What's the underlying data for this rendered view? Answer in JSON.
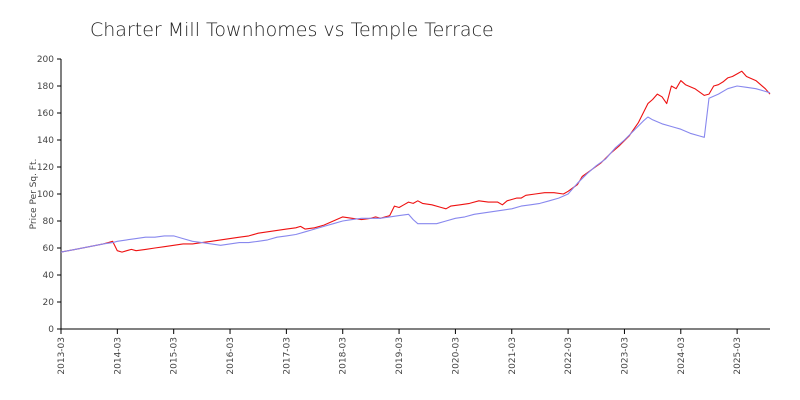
{
  "chart_data": {
    "type": "line",
    "title": "Charter Mill Townhomes vs Temple Terrace",
    "xlabel": "",
    "ylabel": "Price Per Sq. Ft.",
    "ylim": [
      0,
      200
    ],
    "yticks": [
      0,
      20,
      40,
      60,
      80,
      100,
      120,
      140,
      160,
      180,
      200
    ],
    "xticks": [
      "2013-03",
      "2014-03",
      "2015-03",
      "2016-03",
      "2017-03",
      "2018-03",
      "2019-03",
      "2020-03",
      "2021-03",
      "2022-03",
      "2023-03",
      "2024-03",
      "2025-03"
    ],
    "xrange": [
      "2013-03",
      "2025-10"
    ],
    "grid": false,
    "legend": "none",
    "series": [
      {
        "color": "#ee1111",
        "points": [
          [
            "2013-03",
            57
          ],
          [
            "2013-06",
            59
          ],
          [
            "2013-09",
            61
          ],
          [
            "2013-12",
            63
          ],
          [
            "2014-01",
            64
          ],
          [
            "2014-02",
            65
          ],
          [
            "2014-03",
            58
          ],
          [
            "2014-04",
            57
          ],
          [
            "2014-05",
            58
          ],
          [
            "2014-06",
            59
          ],
          [
            "2014-07",
            58
          ],
          [
            "2014-09",
            59
          ],
          [
            "2014-11",
            60
          ],
          [
            "2015-01",
            61
          ],
          [
            "2015-03",
            62
          ],
          [
            "2015-05",
            63
          ],
          [
            "2015-07",
            63
          ],
          [
            "2015-09",
            64
          ],
          [
            "2015-11",
            65
          ],
          [
            "2016-01",
            66
          ],
          [
            "2016-03",
            67
          ],
          [
            "2016-05",
            68
          ],
          [
            "2016-07",
            69
          ],
          [
            "2016-09",
            71
          ],
          [
            "2016-11",
            72
          ],
          [
            "2017-01",
            73
          ],
          [
            "2017-03",
            74
          ],
          [
            "2017-05",
            75
          ],
          [
            "2017-06",
            76
          ],
          [
            "2017-07",
            74
          ],
          [
            "2017-09",
            75
          ],
          [
            "2017-11",
            77
          ],
          [
            "2018-01",
            80
          ],
          [
            "2018-03",
            83
          ],
          [
            "2018-05",
            82
          ],
          [
            "2018-07",
            81
          ],
          [
            "2018-09",
            82
          ],
          [
            "2018-10",
            83
          ],
          [
            "2018-11",
            82
          ],
          [
            "2019-01",
            84
          ],
          [
            "2019-02",
            91
          ],
          [
            "2019-03",
            90
          ],
          [
            "2019-04",
            92
          ],
          [
            "2019-05",
            94
          ],
          [
            "2019-06",
            93
          ],
          [
            "2019-07",
            95
          ],
          [
            "2019-08",
            93
          ],
          [
            "2019-10",
            92
          ],
          [
            "2019-12",
            90
          ],
          [
            "2020-01",
            89
          ],
          [
            "2020-02",
            91
          ],
          [
            "2020-04",
            92
          ],
          [
            "2020-06",
            93
          ],
          [
            "2020-08",
            95
          ],
          [
            "2020-10",
            94
          ],
          [
            "2020-12",
            94
          ],
          [
            "2021-01",
            92
          ],
          [
            "2021-02",
            95
          ],
          [
            "2021-04",
            97
          ],
          [
            "2021-05",
            97
          ],
          [
            "2021-06",
            99
          ],
          [
            "2021-08",
            100
          ],
          [
            "2021-10",
            101
          ],
          [
            "2021-12",
            101
          ],
          [
            "2022-02",
            100
          ],
          [
            "2022-03",
            102
          ],
          [
            "2022-05",
            107
          ],
          [
            "2022-06",
            113
          ],
          [
            "2022-08",
            118
          ],
          [
            "2022-10",
            123
          ],
          [
            "2022-12",
            130
          ],
          [
            "2023-02",
            136
          ],
          [
            "2023-04",
            143
          ],
          [
            "2023-06",
            153
          ],
          [
            "2023-07",
            160
          ],
          [
            "2023-08",
            167
          ],
          [
            "2023-09",
            170
          ],
          [
            "2023-10",
            174
          ],
          [
            "2023-11",
            172
          ],
          [
            "2023-12",
            167
          ],
          [
            "2024-01",
            180
          ],
          [
            "2024-02",
            178
          ],
          [
            "2024-03",
            184
          ],
          [
            "2024-04",
            181
          ],
          [
            "2024-06",
            178
          ],
          [
            "2024-08",
            173
          ],
          [
            "2024-09",
            174
          ],
          [
            "2024-10",
            180
          ],
          [
            "2024-11",
            181
          ],
          [
            "2024-12",
            183
          ],
          [
            "2025-01",
            186
          ],
          [
            "2025-02",
            187
          ],
          [
            "2025-03",
            189
          ],
          [
            "2025-04",
            191
          ],
          [
            "2025-05",
            187
          ],
          [
            "2025-07",
            184
          ],
          [
            "2025-09",
            178
          ],
          [
            "2025-10",
            174
          ]
        ]
      },
      {
        "color": "#8888ee",
        "points": [
          [
            "2013-03",
            57
          ],
          [
            "2013-06",
            59
          ],
          [
            "2013-09",
            61
          ],
          [
            "2013-12",
            63
          ],
          [
            "2014-02",
            64
          ],
          [
            "2014-03",
            65
          ],
          [
            "2014-05",
            66
          ],
          [
            "2014-07",
            67
          ],
          [
            "2014-09",
            68
          ],
          [
            "2014-11",
            68
          ],
          [
            "2015-01",
            69
          ],
          [
            "2015-03",
            69
          ],
          [
            "2015-05",
            67
          ],
          [
            "2015-07",
            65
          ],
          [
            "2015-09",
            64
          ],
          [
            "2015-11",
            63
          ],
          [
            "2016-01",
            62
          ],
          [
            "2016-03",
            63
          ],
          [
            "2016-05",
            64
          ],
          [
            "2016-07",
            64
          ],
          [
            "2016-09",
            65
          ],
          [
            "2016-11",
            66
          ],
          [
            "2017-01",
            68
          ],
          [
            "2017-03",
            69
          ],
          [
            "2017-05",
            70
          ],
          [
            "2017-07",
            72
          ],
          [
            "2017-09",
            74
          ],
          [
            "2017-11",
            76
          ],
          [
            "2018-01",
            78
          ],
          [
            "2018-03",
            80
          ],
          [
            "2018-05",
            81
          ],
          [
            "2018-07",
            82
          ],
          [
            "2018-09",
            82
          ],
          [
            "2018-11",
            82
          ],
          [
            "2019-01",
            83
          ],
          [
            "2019-03",
            84
          ],
          [
            "2019-05",
            85
          ],
          [
            "2019-06",
            81
          ],
          [
            "2019-07",
            78
          ],
          [
            "2019-09",
            78
          ],
          [
            "2019-11",
            78
          ],
          [
            "2020-01",
            80
          ],
          [
            "2020-03",
            82
          ],
          [
            "2020-05",
            83
          ],
          [
            "2020-07",
            85
          ],
          [
            "2020-09",
            86
          ],
          [
            "2020-11",
            87
          ],
          [
            "2021-01",
            88
          ],
          [
            "2021-03",
            89
          ],
          [
            "2021-05",
            91
          ],
          [
            "2021-07",
            92
          ],
          [
            "2021-09",
            93
          ],
          [
            "2021-11",
            95
          ],
          [
            "2022-01",
            97
          ],
          [
            "2022-03",
            100
          ],
          [
            "2022-05",
            108
          ],
          [
            "2022-07",
            115
          ],
          [
            "2022-09",
            121
          ],
          [
            "2022-11",
            126
          ],
          [
            "2023-01",
            134
          ],
          [
            "2023-03",
            140
          ],
          [
            "2023-05",
            147
          ],
          [
            "2023-07",
            154
          ],
          [
            "2023-08",
            157
          ],
          [
            "2023-09",
            155
          ],
          [
            "2023-11",
            152
          ],
          [
            "2024-01",
            150
          ],
          [
            "2024-03",
            148
          ],
          [
            "2024-05",
            145
          ],
          [
            "2024-07",
            143
          ],
          [
            "2024-08",
            142
          ],
          [
            "2024-09",
            171
          ],
          [
            "2024-11",
            174
          ],
          [
            "2025-01",
            178
          ],
          [
            "2025-03",
            180
          ],
          [
            "2025-05",
            179
          ],
          [
            "2025-07",
            178
          ],
          [
            "2025-09",
            176
          ],
          [
            "2025-10",
            175
          ]
        ]
      }
    ]
  }
}
